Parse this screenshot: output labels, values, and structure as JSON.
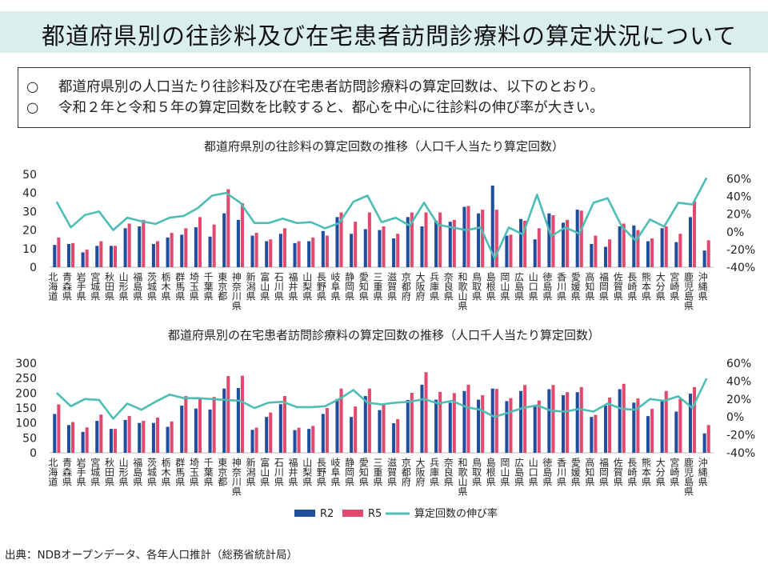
{
  "page": {
    "title": "都道府県別の往診料及び在宅患者訪問診療料の算定状況について",
    "bullets": [
      {
        "mark": "○",
        "text": "都道府県別の人口当たり往診料及び在宅患者訪問診療料の算定回数は、以下のとおり。"
      },
      {
        "mark": "○",
        "text": "令和２年と令和５年の算定回数を比較すると、都心を中心に往診料の伸び率が大きい。"
      }
    ],
    "source": "出典：NDBオープンデータ、各年人口推計（総務省統計局）",
    "colors": {
      "r2": "#1f4e9e",
      "r5": "#e04a6e",
      "growth": "#4dbdb5",
      "title_bg": "#daeeee"
    }
  },
  "chart_data": [
    {
      "type": "bar",
      "title": "都道府県別の往診料の算定回数の推移（人口千人当たり算定回数）",
      "categories": [
        "北海道",
        "青森県",
        "岩手県",
        "宮城県",
        "秋田県",
        "山形県",
        "福島県",
        "茨城県",
        "栃木県",
        "群馬県",
        "埼玉県",
        "千葉県",
        "東京都",
        "神奈川県",
        "新潟県",
        "富山県",
        "石川県",
        "福井県",
        "山梨県",
        "長野県",
        "岐阜県",
        "静岡県",
        "愛知県",
        "三重県",
        "滋賀県",
        "京都府",
        "大阪府",
        "兵庫県",
        "奈良県",
        "和歌山県",
        "鳥取県",
        "島根県",
        "岡山県",
        "広島県",
        "山口県",
        "徳島県",
        "香川県",
        "愛媛県",
        "高知県",
        "福岡県",
        "佐賀県",
        "長崎県",
        "熊本県",
        "大分県",
        "宮崎県",
        "鹿児島県",
        "沖縄県"
      ],
      "series": [
        {
          "name": "R2",
          "axis": "left",
          "values": [
            12,
            12.5,
            8,
            11.5,
            11.5,
            21,
            22,
            12.5,
            16,
            17.5,
            21.5,
            16.5,
            29,
            25.5,
            17,
            14,
            18,
            13,
            14,
            19.5,
            27,
            18,
            20.5,
            20,
            15.5,
            27,
            22,
            25,
            24.5,
            32.5,
            29,
            44,
            17,
            26,
            15,
            29,
            24,
            31,
            12.5,
            11,
            22,
            22.5,
            14,
            21,
            13.5,
            27,
            9
          ]
        },
        {
          "name": "R5",
          "axis": "right",
          "values": [
            16,
            13,
            9.5,
            14,
            11.5,
            23.5,
            25.5,
            14,
            18.5,
            21,
            27,
            23,
            42,
            34.5,
            18.5,
            15,
            21,
            14,
            16,
            17,
            29.5,
            24.5,
            29.5,
            22,
            18,
            29.5,
            29.5,
            29.5,
            25.5,
            33,
            31,
            31,
            17.5,
            25,
            21,
            28,
            25.5,
            30.5,
            17,
            15,
            23.5,
            20,
            15.5,
            22,
            18,
            35.5,
            14.5
          ]
        },
        {
          "name": "算定回数の伸び率",
          "axis": "right",
          "values": [
            34,
            5,
            19,
            23,
            2,
            16,
            12,
            9,
            16,
            18,
            27,
            41,
            44,
            33,
            10,
            10,
            15,
            10,
            11,
            4,
            10,
            34,
            41,
            11,
            16,
            7,
            33,
            8,
            5,
            2,
            5,
            -30,
            5,
            -3,
            42,
            -5,
            5,
            -2,
            33,
            38,
            6,
            -10,
            14,
            6,
            33,
            31,
            61
          ]
        }
      ],
      "ylim": [
        0,
        50
      ],
      "yticks": [
        "0",
        "10",
        "20",
        "30",
        "40",
        "50"
      ],
      "y2lim": [
        -40,
        65
      ],
      "y2ticks": [
        "-40%",
        "-20%",
        "0%",
        "20%",
        "40%",
        "60%"
      ]
    },
    {
      "type": "bar",
      "title": "都道府県別の在宅患者訪問診療料の算定回数の推移（人口千人当たり算定回数）",
      "categories": [
        "北海道",
        "青森県",
        "岩手県",
        "宮城県",
        "秋田県",
        "山形県",
        "福島県",
        "茨城県",
        "栃木県",
        "群馬県",
        "埼玉県",
        "千葉県",
        "東京都",
        "神奈川県",
        "新潟県",
        "富山県",
        "石川県",
        "福井県",
        "山梨県",
        "長野県",
        "岐阜県",
        "静岡県",
        "愛知県",
        "三重県",
        "滋賀県",
        "京都府",
        "大阪府",
        "兵庫県",
        "奈良県",
        "和歌山県",
        "鳥取県",
        "島根県",
        "岡山県",
        "広島県",
        "山口県",
        "徳島県",
        "香川県",
        "愛媛県",
        "高知県",
        "福岡県",
        "佐賀県",
        "長崎県",
        "熊本県",
        "大分県",
        "宮崎県",
        "鹿児島県",
        "沖縄県"
      ],
      "series": [
        {
          "name": "R2",
          "axis": "left",
          "values": [
            130,
            93,
            70,
            107,
            80,
            110,
            100,
            100,
            87,
            158,
            148,
            145,
            215,
            217,
            77,
            120,
            163,
            76,
            80,
            130,
            180,
            120,
            190,
            143,
            99,
            177,
            228,
            178,
            168,
            207,
            178,
            215,
            173,
            207,
            155,
            213,
            193,
            203,
            120,
            158,
            213,
            168,
            123,
            174,
            138,
            198,
            65
          ]
        },
        {
          "name": "R5",
          "axis": "left",
          "values": [
            162,
            103,
            85,
            128,
            80,
            123,
            107,
            118,
            105,
            190,
            180,
            187,
            257,
            258,
            84,
            135,
            190,
            84,
            90,
            150,
            215,
            155,
            215,
            163,
            113,
            201,
            270,
            204,
            200,
            228,
            193,
            214,
            183,
            227,
            175,
            227,
            203,
            220,
            127,
            185,
            231,
            182,
            147,
            207,
            180,
            220,
            93
          ]
        },
        {
          "name": "算定回数の伸び率",
          "axis": "right",
          "values": [
            27,
            12,
            20,
            19,
            -2,
            15,
            8,
            17,
            25,
            21,
            21,
            20,
            19,
            18,
            10,
            16,
            17,
            11,
            11,
            12,
            20,
            30,
            16,
            14,
            16,
            17,
            20,
            15,
            18,
            11,
            8,
            0,
            5,
            10,
            13,
            7,
            6,
            9,
            6,
            15,
            9,
            8,
            20,
            18,
            23,
            10,
            43
          ]
        }
      ],
      "ylim": [
        0,
        300
      ],
      "yticks": [
        "0",
        "50",
        "100",
        "150",
        "200",
        "250",
        "300"
      ],
      "y2lim": [
        -40,
        60
      ],
      "y2ticks": [
        "-40%",
        "-20%",
        "0%",
        "20%",
        "40%",
        "60%"
      ],
      "legend": "bottom"
    }
  ]
}
